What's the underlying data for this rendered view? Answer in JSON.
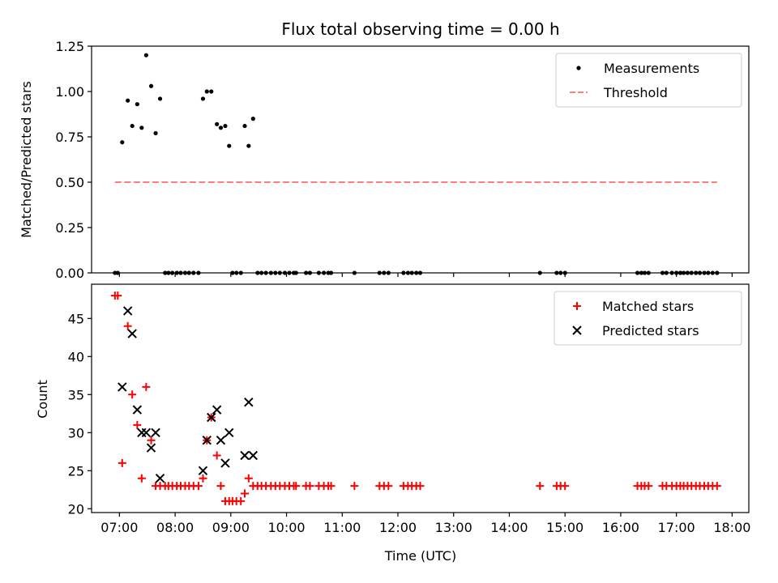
{
  "chart_data": {
    "type": "scatter",
    "title": "Flux total observing time = 0.00 h",
    "xlabel": "Time (UTC)",
    "xlim": [
      6.5,
      18.3
    ],
    "xticks": [
      "07:00",
      "08:00",
      "09:00",
      "10:00",
      "11:00",
      "12:00",
      "13:00",
      "14:00",
      "15:00",
      "16:00",
      "17:00",
      "18:00"
    ],
    "grid": false,
    "panels": [
      {
        "ylabel": "Matched/Predicted stars",
        "ylim": [
          0,
          1.25
        ],
        "yticks": [
          "0.00",
          "0.25",
          "0.50",
          "0.75",
          "1.00",
          "1.25"
        ],
        "legend_position": "top-right",
        "series": [
          {
            "name": "Measurements",
            "marker": "dot",
            "color": "#000000",
            "points": [
              [
                6.92,
                0
              ],
              [
                6.97,
                0
              ],
              [
                7.05,
                0.72
              ],
              [
                7.15,
                0.95
              ],
              [
                7.23,
                0.81
              ],
              [
                7.32,
                0.93
              ],
              [
                7.4,
                0.8
              ],
              [
                7.48,
                1.2
              ],
              [
                7.57,
                1.03
              ],
              [
                7.65,
                0.77
              ],
              [
                7.73,
                0.96
              ],
              [
                7.82,
                0
              ],
              [
                7.88,
                0
              ],
              [
                7.95,
                0
              ],
              [
                8.03,
                0
              ],
              [
                8.1,
                0
              ],
              [
                8.18,
                0
              ],
              [
                8.25,
                0
              ],
              [
                8.33,
                0
              ],
              [
                8.42,
                0
              ],
              [
                8.5,
                0.96
              ],
              [
                8.57,
                1.0
              ],
              [
                8.65,
                1.0
              ],
              [
                8.75,
                0.82
              ],
              [
                8.82,
                0.8
              ],
              [
                8.9,
                0.81
              ],
              [
                8.97,
                0.7
              ],
              [
                9.03,
                0
              ],
              [
                9.1,
                0
              ],
              [
                9.18,
                0
              ],
              [
                9.25,
                0.81
              ],
              [
                9.32,
                0.7
              ],
              [
                9.4,
                0.85
              ],
              [
                9.48,
                0
              ],
              [
                9.55,
                0
              ],
              [
                9.63,
                0
              ],
              [
                9.72,
                0
              ],
              [
                9.8,
                0
              ],
              [
                9.88,
                0
              ],
              [
                9.97,
                0
              ],
              [
                10.05,
                0
              ],
              [
                10.13,
                0
              ],
              [
                10.17,
                0
              ],
              [
                10.35,
                0
              ],
              [
                10.42,
                0
              ],
              [
                10.58,
                0
              ],
              [
                10.67,
                0
              ],
              [
                10.75,
                0
              ],
              [
                10.8,
                0
              ],
              [
                11.22,
                0
              ],
              [
                11.67,
                0
              ],
              [
                11.75,
                0
              ],
              [
                11.83,
                0
              ],
              [
                12.1,
                0
              ],
              [
                12.18,
                0
              ],
              [
                12.25,
                0
              ],
              [
                12.33,
                0
              ],
              [
                12.4,
                0
              ],
              [
                14.55,
                0
              ],
              [
                14.85,
                0
              ],
              [
                14.92,
                0
              ],
              [
                15.0,
                0
              ],
              [
                16.3,
                0
              ],
              [
                16.37,
                0
              ],
              [
                16.43,
                0
              ],
              [
                16.5,
                0
              ],
              [
                16.75,
                0
              ],
              [
                16.82,
                0
              ],
              [
                16.92,
                0
              ],
              [
                17.0,
                0
              ],
              [
                17.07,
                0
              ],
              [
                17.13,
                0
              ],
              [
                17.2,
                0
              ],
              [
                17.27,
                0
              ],
              [
                17.35,
                0
              ],
              [
                17.42,
                0
              ],
              [
                17.5,
                0
              ],
              [
                17.57,
                0
              ],
              [
                17.65,
                0
              ],
              [
                17.73,
                0
              ]
            ]
          },
          {
            "name": "Threshold",
            "marker": "dashed-line",
            "color": "#ff7f7f",
            "points": [
              [
                6.92,
                0.5
              ],
              [
                17.73,
                0.5
              ]
            ]
          }
        ]
      },
      {
        "ylabel": "Count",
        "ylim": [
          19.5,
          49.5
        ],
        "yticks": [
          "20",
          "25",
          "30",
          "35",
          "40",
          "45"
        ],
        "legend_position": "top-right",
        "series": [
          {
            "name": "Matched stars",
            "marker": "plus",
            "color": "#ff0000",
            "points": [
              [
                6.92,
                48
              ],
              [
                6.97,
                48
              ],
              [
                7.05,
                26
              ],
              [
                7.15,
                44
              ],
              [
                7.23,
                35
              ],
              [
                7.32,
                31
              ],
              [
                7.4,
                24
              ],
              [
                7.48,
                36
              ],
              [
                7.57,
                29
              ],
              [
                7.65,
                23
              ],
              [
                7.73,
                23
              ],
              [
                7.82,
                23
              ],
              [
                7.88,
                23
              ],
              [
                7.95,
                23
              ],
              [
                8.03,
                23
              ],
              [
                8.1,
                23
              ],
              [
                8.18,
                23
              ],
              [
                8.25,
                23
              ],
              [
                8.33,
                23
              ],
              [
                8.42,
                23
              ],
              [
                8.5,
                24
              ],
              [
                8.57,
                29
              ],
              [
                8.65,
                32
              ],
              [
                8.75,
                27
              ],
              [
                8.82,
                23
              ],
              [
                8.9,
                21
              ],
              [
                8.97,
                21
              ],
              [
                9.03,
                21
              ],
              [
                9.1,
                21
              ],
              [
                9.18,
                21
              ],
              [
                9.25,
                22
              ],
              [
                9.32,
                24
              ],
              [
                9.4,
                23
              ],
              [
                9.48,
                23
              ],
              [
                9.55,
                23
              ],
              [
                9.63,
                23
              ],
              [
                9.72,
                23
              ],
              [
                9.8,
                23
              ],
              [
                9.88,
                23
              ],
              [
                9.97,
                23
              ],
              [
                10.05,
                23
              ],
              [
                10.13,
                23
              ],
              [
                10.17,
                23
              ],
              [
                10.35,
                23
              ],
              [
                10.42,
                23
              ],
              [
                10.58,
                23
              ],
              [
                10.67,
                23
              ],
              [
                10.75,
                23
              ],
              [
                10.8,
                23
              ],
              [
                11.22,
                23
              ],
              [
                11.67,
                23
              ],
              [
                11.75,
                23
              ],
              [
                11.83,
                23
              ],
              [
                12.1,
                23
              ],
              [
                12.18,
                23
              ],
              [
                12.25,
                23
              ],
              [
                12.33,
                23
              ],
              [
                12.4,
                23
              ],
              [
                14.55,
                23
              ],
              [
                14.85,
                23
              ],
              [
                14.92,
                23
              ],
              [
                15.0,
                23
              ],
              [
                16.3,
                23
              ],
              [
                16.37,
                23
              ],
              [
                16.43,
                23
              ],
              [
                16.5,
                23
              ],
              [
                16.75,
                23
              ],
              [
                16.82,
                23
              ],
              [
                16.92,
                23
              ],
              [
                17.0,
                23
              ],
              [
                17.07,
                23
              ],
              [
                17.13,
                23
              ],
              [
                17.2,
                23
              ],
              [
                17.27,
                23
              ],
              [
                17.35,
                23
              ],
              [
                17.42,
                23
              ],
              [
                17.5,
                23
              ],
              [
                17.57,
                23
              ],
              [
                17.65,
                23
              ],
              [
                17.73,
                23
              ]
            ]
          },
          {
            "name": "Predicted stars",
            "marker": "x",
            "color": "#000000",
            "points": [
              [
                7.05,
                36
              ],
              [
                7.15,
                46
              ],
              [
                7.23,
                43
              ],
              [
                7.32,
                33
              ],
              [
                7.4,
                30
              ],
              [
                7.48,
                30
              ],
              [
                7.57,
                28
              ],
              [
                7.65,
                30
              ],
              [
                7.73,
                24
              ],
              [
                8.5,
                25
              ],
              [
                8.57,
                29
              ],
              [
                8.65,
                32
              ],
              [
                8.75,
                33
              ],
              [
                8.82,
                29
              ],
              [
                8.9,
                26
              ],
              [
                8.97,
                30
              ],
              [
                9.25,
                27
              ],
              [
                9.32,
                34
              ],
              [
                9.4,
                27
              ]
            ]
          }
        ]
      }
    ]
  }
}
